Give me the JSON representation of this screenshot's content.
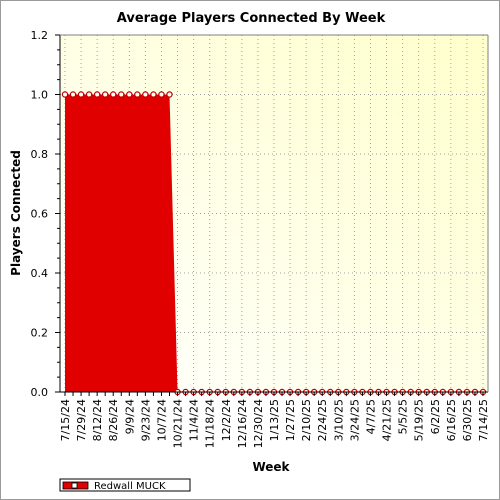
{
  "chart_data": {
    "type": "area",
    "title": "Average Players Connected By Week",
    "xlabel": "Week",
    "ylabel": "Players Connected",
    "ylim": [
      0,
      1.2
    ],
    "yticks": [
      "0.0",
      "0.2",
      "0.4",
      "0.6",
      "0.8",
      "1.0",
      "1.2"
    ],
    "grid": true,
    "legend_position": "bottom-left",
    "x_tick_labels": [
      "7/15/24",
      "7/29/24",
      "8/12/24",
      "8/26/24",
      "9/9/24",
      "9/23/24",
      "10/7/24",
      "10/21/24",
      "11/4/24",
      "11/18/24",
      "12/2/24",
      "12/16/24",
      "12/30/24",
      "1/13/25",
      "1/27/25",
      "2/10/25",
      "2/24/25",
      "3/10/25",
      "3/24/25",
      "4/7/25",
      "4/21/25",
      "5/5/25",
      "5/19/25",
      "6/2/25",
      "6/16/25",
      "6/30/25",
      "7/14/25"
    ],
    "x": [
      "7/15/24",
      "7/22/24",
      "7/29/24",
      "8/5/24",
      "8/12/24",
      "8/19/24",
      "8/26/24",
      "9/2/24",
      "9/9/24",
      "9/16/24",
      "9/23/24",
      "9/30/24",
      "10/7/24",
      "10/14/24",
      "10/21/24",
      "10/28/24",
      "11/4/24",
      "11/11/24",
      "11/18/24",
      "11/25/24",
      "12/2/24",
      "12/9/24",
      "12/16/24",
      "12/23/24",
      "12/30/24",
      "1/6/25",
      "1/13/25",
      "1/20/25",
      "1/27/25",
      "2/3/25",
      "2/10/25",
      "2/17/25",
      "2/24/25",
      "3/3/25",
      "3/10/25",
      "3/17/25",
      "3/24/25",
      "3/31/25",
      "4/7/25",
      "4/14/25",
      "4/21/25",
      "4/28/25",
      "5/5/25",
      "5/12/25",
      "5/19/25",
      "5/26/25",
      "6/2/25",
      "6/9/25",
      "6/16/25",
      "6/23/25",
      "6/30/25",
      "7/7/25",
      "7/14/25"
    ],
    "series": [
      {
        "name": "Redwall MUCK",
        "color": "#e00000",
        "values": [
          1,
          1,
          1,
          1,
          1,
          1,
          1,
          1,
          1,
          1,
          1,
          1,
          1,
          1,
          0,
          0,
          0,
          0,
          0,
          0,
          0,
          0,
          0,
          0,
          0,
          0,
          0,
          0,
          0,
          0,
          0,
          0,
          0,
          0,
          0,
          0,
          0,
          0,
          0,
          0,
          0,
          0,
          0,
          0,
          0,
          0,
          0,
          0,
          0,
          0,
          0,
          0,
          0
        ]
      }
    ],
    "colors": {
      "plot_bg_start": "#ffffff",
      "plot_bg_end": "#ffffcc",
      "grid": "#a0a0a0",
      "area": "#e00000",
      "marker_edge": "#c00000",
      "marker_fill": "#ffffff"
    }
  }
}
